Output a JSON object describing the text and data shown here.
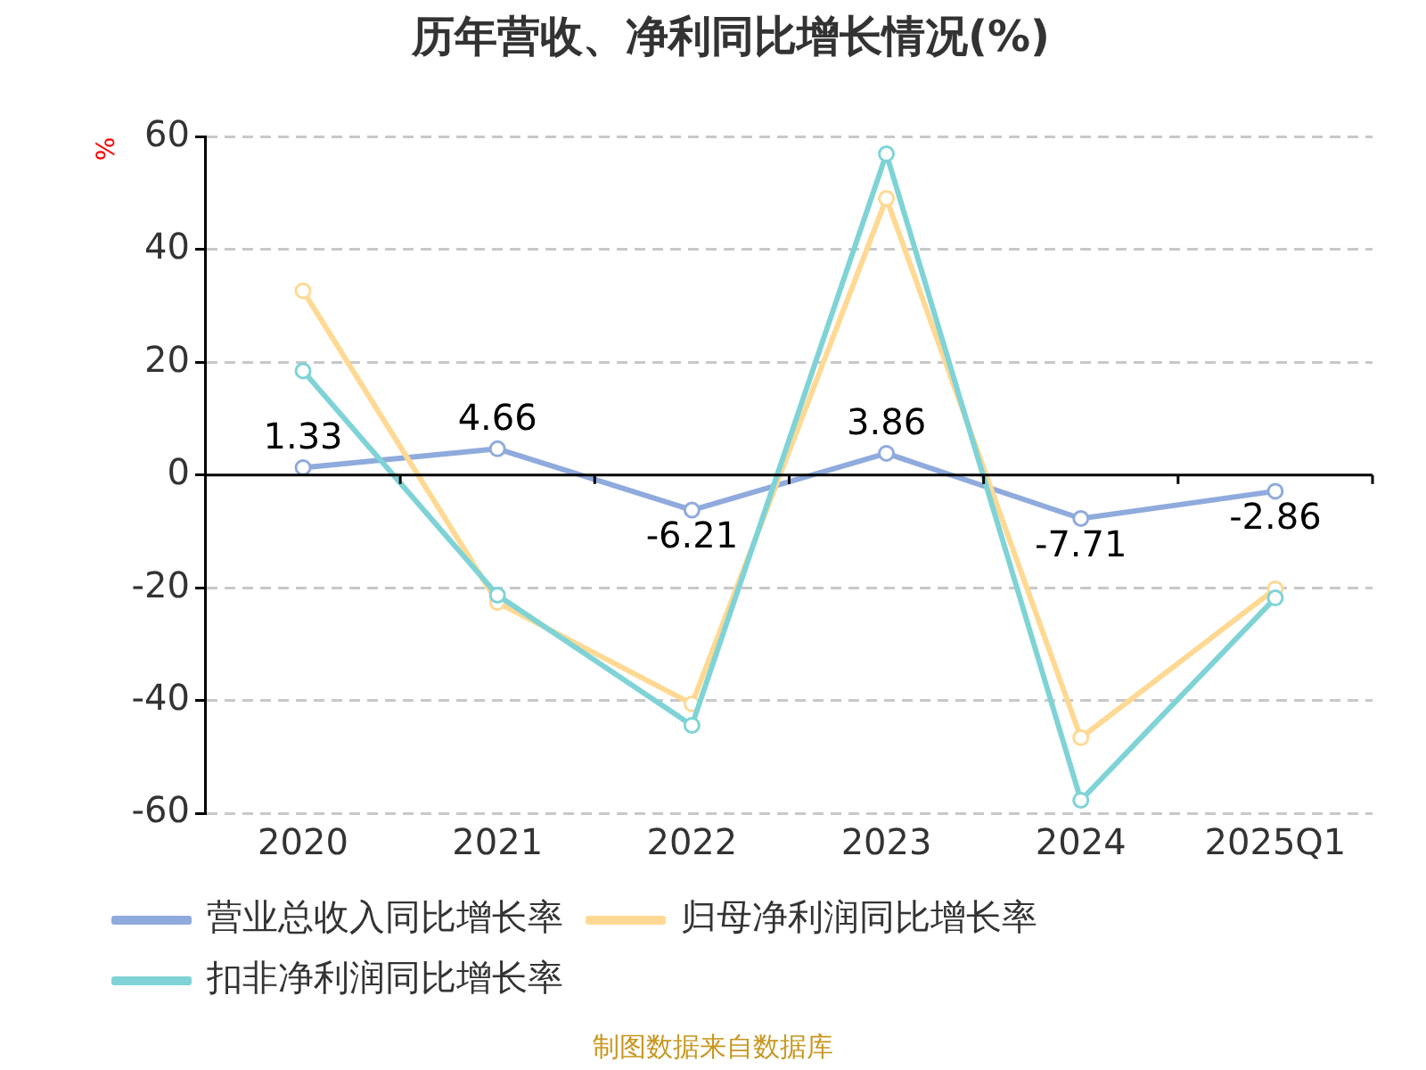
{
  "chart_data": {
    "type": "line",
    "title": "历年营收、净利同比增长情况(%)",
    "ylabel": "%",
    "categories": [
      "2020",
      "2021",
      "2022",
      "2023",
      "2024",
      "2025Q1"
    ],
    "series": [
      {
        "name": "营业总收入同比增长率",
        "color": "#8faadc",
        "values": [
          1.33,
          4.66,
          -6.21,
          3.86,
          -7.71,
          -2.86
        ],
        "value_labels": [
          "1.33",
          "4.66",
          "-6.21",
          "3.86",
          "-7.71",
          "-2.86"
        ]
      },
      {
        "name": "归母净利润同比增长率",
        "color": "#ffd993",
        "values": [
          32.7,
          -22.6,
          -40.6,
          49.1,
          -46.6,
          -20.2
        ]
      },
      {
        "name": "扣非净利润同比增长率",
        "color": "#7fd3d6",
        "values": [
          18.5,
          -21.3,
          -44.4,
          57.0,
          -57.7,
          -21.8
        ]
      }
    ],
    "ylim": [
      -60,
      60
    ],
    "yticks": [
      -60,
      -40,
      -20,
      0,
      20,
      40,
      60
    ],
    "grid": "y",
    "legend": "bottom",
    "marker": "circle",
    "line_style": "solid",
    "annotations": [
      "制图数据来自数据库"
    ]
  }
}
